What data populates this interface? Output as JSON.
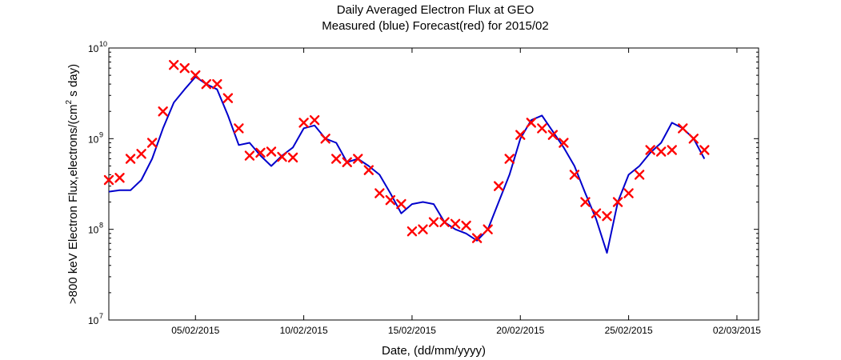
{
  "chart_data": {
    "type": "line",
    "title": "Daily Averaged Electron Flux at GEO",
    "subtitle": "Measured (blue) Forecast(red) for 2015/02",
    "xlabel": "Date, (dd/mm/yyyy)",
    "ylabel": ">800 keV Electron Flux,electrons/(cm",
    "ylabel_exp": "2",
    "ylabel_tail": " s day)",
    "y_scale": "log",
    "ylim": [
      10000000.0,
      10000000000.0
    ],
    "xlim": [
      "01/02/2015",
      "03/03/2015"
    ],
    "x_ticks": [
      "05/02/2015",
      "10/02/2015",
      "15/02/2015",
      "20/02/2015",
      "25/02/2015",
      "02/03/2015"
    ],
    "y_ticks": [
      {
        "base": "10",
        "exp": "7",
        "value": 10000000.0
      },
      {
        "base": "10",
        "exp": "8",
        "value": 100000000.0
      },
      {
        "base": "10",
        "exp": "9",
        "value": 1000000000.0
      },
      {
        "base": "10",
        "exp": "10",
        "value": 10000000000.0
      }
    ],
    "grid": false,
    "series": [
      {
        "color": "#0000cc",
        "style": "line",
        "x": [
          "01/02/2015 00:00",
          "01/02/2015 12:00",
          "02/02/2015 00:00",
          "02/02/2015 12:00",
          "03/02/2015 00:00",
          "03/02/2015 12:00",
          "04/02/2015 00:00",
          "04/02/2015 12:00",
          "05/02/2015 00:00",
          "05/02/2015 12:00",
          "06/02/2015 00:00",
          "06/02/2015 12:00",
          "07/02/2015 00:00",
          "07/02/2015 12:00",
          "08/02/2015 00:00",
          "08/02/2015 12:00",
          "09/02/2015 00:00",
          "09/02/2015 12:00",
          "10/02/2015 00:00",
          "10/02/2015 12:00",
          "11/02/2015 00:00",
          "11/02/2015 12:00",
          "12/02/2015 00:00",
          "12/02/2015 12:00",
          "13/02/2015 00:00",
          "13/02/2015 12:00",
          "14/02/2015 00:00",
          "14/02/2015 12:00",
          "15/02/2015 00:00",
          "15/02/2015 12:00",
          "16/02/2015 00:00",
          "16/02/2015 12:00",
          "17/02/2015 00:00",
          "17/02/2015 12:00",
          "18/02/2015 00:00",
          "18/02/2015 12:00",
          "19/02/2015 00:00",
          "19/02/2015 12:00",
          "20/02/2015 00:00",
          "20/02/2015 12:00",
          "21/02/2015 00:00",
          "21/02/2015 12:00",
          "22/02/2015 00:00",
          "22/02/2015 12:00",
          "23/02/2015 00:00",
          "23/02/2015 12:00",
          "24/02/2015 00:00",
          "24/02/2015 12:00",
          "25/02/2015 00:00",
          "25/02/2015 12:00",
          "26/02/2015 00:00",
          "26/02/2015 12:00",
          "27/02/2015 00:00",
          "27/02/2015 12:00",
          "28/02/2015 00:00",
          "28/02/2015 12:00"
        ],
        "y": [
          260000000.0,
          270000000.0,
          270000000.0,
          350000000.0,
          600000000.0,
          1300000000.0,
          2500000000.0,
          3500000000.0,
          4800000000.0,
          4000000000.0,
          3500000000.0,
          1800000000.0,
          850000000.0,
          900000000.0,
          650000000.0,
          500000000.0,
          650000000.0,
          800000000.0,
          1300000000.0,
          1400000000.0,
          1000000000.0,
          900000000.0,
          550000000.0,
          600000000.0,
          500000000.0,
          400000000.0,
          250000000.0,
          150000000.0,
          190000000.0,
          200000000.0,
          190000000.0,
          120000000.0,
          100000000.0,
          90000000.0,
          75000000.0,
          100000000.0,
          200000000.0,
          400000000.0,
          1000000000.0,
          1600000000.0,
          1800000000.0,
          1200000000.0,
          800000000.0,
          500000000.0,
          250000000.0,
          130000000.0,
          55000000.0,
          200000000.0,
          400000000.0,
          500000000.0,
          700000000.0,
          900000000.0,
          1500000000.0,
          1300000000.0,
          1000000000.0,
          600000000.0
        ]
      },
      {
        "color": "#ff0000",
        "style": "markers",
        "marker": "x",
        "x": [
          "01/02/2015 00:00",
          "01/02/2015 12:00",
          "02/02/2015 00:00",
          "02/02/2015 12:00",
          "03/02/2015 00:00",
          "03/02/2015 12:00",
          "04/02/2015 00:00",
          "04/02/2015 12:00",
          "05/02/2015 00:00",
          "05/02/2015 12:00",
          "06/02/2015 00:00",
          "06/02/2015 12:00",
          "07/02/2015 00:00",
          "07/02/2015 12:00",
          "08/02/2015 00:00",
          "08/02/2015 12:00",
          "09/02/2015 00:00",
          "09/02/2015 12:00",
          "10/02/2015 00:00",
          "10/02/2015 12:00",
          "11/02/2015 00:00",
          "11/02/2015 12:00",
          "12/02/2015 00:00",
          "12/02/2015 12:00",
          "13/02/2015 00:00",
          "13/02/2015 12:00",
          "14/02/2015 00:00",
          "14/02/2015 12:00",
          "15/02/2015 00:00",
          "15/02/2015 12:00",
          "16/02/2015 00:00",
          "16/02/2015 12:00",
          "17/02/2015 00:00",
          "17/02/2015 12:00",
          "18/02/2015 00:00",
          "18/02/2015 12:00",
          "19/02/2015 00:00",
          "19/02/2015 12:00",
          "20/02/2015 00:00",
          "20/02/2015 12:00",
          "21/02/2015 00:00",
          "21/02/2015 12:00",
          "22/02/2015 00:00",
          "22/02/2015 12:00",
          "23/02/2015 00:00",
          "23/02/2015 12:00",
          "24/02/2015 00:00",
          "24/02/2015 12:00",
          "25/02/2015 00:00",
          "25/02/2015 12:00",
          "26/02/2015 00:00",
          "26/02/2015 12:00",
          "27/02/2015 00:00",
          "27/02/2015 12:00",
          "28/02/2015 00:00",
          "28/02/2015 12:00"
        ],
        "y": [
          350000000.0,
          370000000.0,
          600000000.0,
          680000000.0,
          900000000.0,
          2000000000.0,
          6500000000.0,
          6000000000.0,
          5000000000.0,
          4000000000.0,
          4000000000.0,
          2800000000.0,
          1300000000.0,
          650000000.0,
          700000000.0,
          720000000.0,
          630000000.0,
          620000000.0,
          1500000000.0,
          1600000000.0,
          1000000000.0,
          600000000.0,
          550000000.0,
          600000000.0,
          450000000.0,
          250000000.0,
          210000000.0,
          190000000.0,
          95000000.0,
          100000000.0,
          120000000.0,
          120000000.0,
          115000000.0,
          110000000.0,
          80000000.0,
          100000000.0,
          300000000.0,
          600000000.0,
          1100000000.0,
          1500000000.0,
          1300000000.0,
          1100000000.0,
          900000000.0,
          400000000.0,
          200000000.0,
          150000000.0,
          140000000.0,
          200000000.0,
          250000000.0,
          400000000.0,
          750000000.0,
          720000000.0,
          750000000.0,
          1300000000.0,
          1000000000.0,
          750000000.0
        ]
      }
    ]
  }
}
